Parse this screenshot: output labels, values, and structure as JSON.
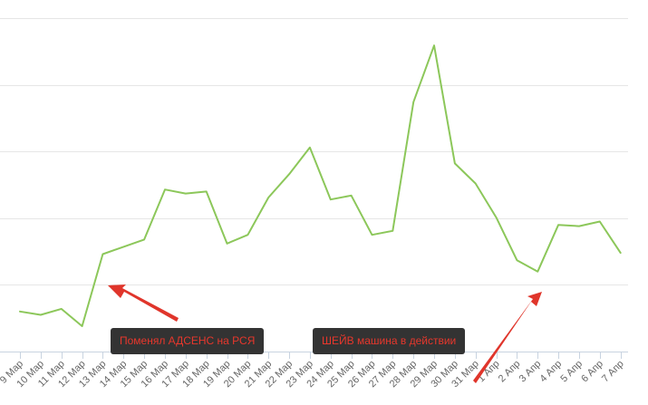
{
  "chart_data": {
    "type": "line",
    "categories": [
      "9 Мар",
      "10 Мар",
      "11 Мар",
      "12 Мар",
      "13 Мар",
      "14 Мар",
      "15 Мар",
      "16 Мар",
      "17 Мар",
      "18 Мар",
      "19 Мар",
      "20 Мар",
      "21 Мар",
      "22 Мар",
      "23 Мар",
      "24 Мар",
      "25 Мар",
      "26 Мар",
      "27 Мар",
      "28 Мар",
      "29 Мар",
      "30 Мар",
      "31 Мар",
      "1 Апр",
      "2 Апр",
      "3 Апр",
      "4 Апр",
      "5 Апр",
      "6 Апр",
      "7 Апр"
    ],
    "series": [
      {
        "values": [
          60,
          55,
          64,
          38,
          146,
          157,
          168,
          243,
          237,
          240,
          162,
          175,
          231,
          266,
          306,
          228,
          234,
          175,
          181,
          374,
          459,
          282,
          252,
          201,
          137,
          120,
          190,
          188,
          195,
          148
        ]
      }
    ],
    "ylim": [
      0,
      500
    ],
    "grid": true,
    "legend": "none",
    "line_color": "#8cc75a",
    "annotations": [
      {
        "text": "Поменял АДСЕНС на РСЯ",
        "points_to": "13 Мар"
      },
      {
        "text": "ШЕЙВ машина в действии",
        "points_to": "3 Апр"
      }
    ],
    "annotation_bg": "#333333",
    "annotation_text_color": "#e8372c",
    "arrow_color": "#e0352b"
  }
}
